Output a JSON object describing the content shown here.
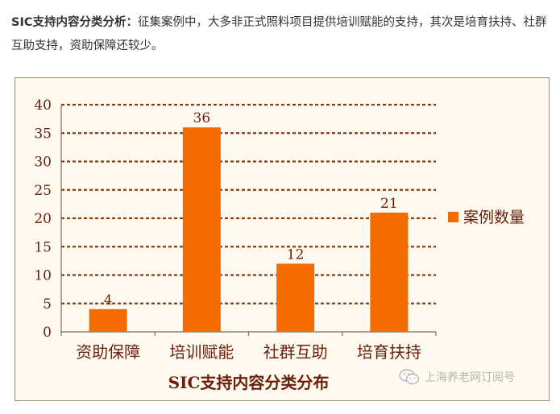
{
  "intro": {
    "lead": "SIC支持内容分类分析：",
    "body": "征集案例中，大多非正式照料项目提供培训赋能的支持，其次是培育扶持、社群互助支持，资助保障还较少。"
  },
  "watermark": {
    "text": "上海养老网订阅号",
    "icon": "wechat-icon"
  },
  "colors": {
    "bar": "#f46b00",
    "frame_bg": "#fefaf0",
    "frame_border": "#9c8a6c",
    "gridline": "#8b3a12",
    "axis_text": "#6b1e0a"
  },
  "chart_data": {
    "type": "bar",
    "categories": [
      "资助保障",
      "培训赋能",
      "社群互助",
      "培育扶持"
    ],
    "series": [
      {
        "name": "案例数量",
        "values": [
          4,
          36,
          12,
          21
        ]
      }
    ],
    "data_labels": [
      "4",
      "36",
      "12",
      "21"
    ],
    "xlabel": "SIC支持内容分类分布",
    "ylabel": "",
    "ylim": [
      0,
      40
    ],
    "yticks": [
      "0",
      "5",
      "10",
      "15",
      "20",
      "25",
      "30",
      "35",
      "40"
    ],
    "grid": true,
    "grid_style": "dashed",
    "legend": "right"
  }
}
